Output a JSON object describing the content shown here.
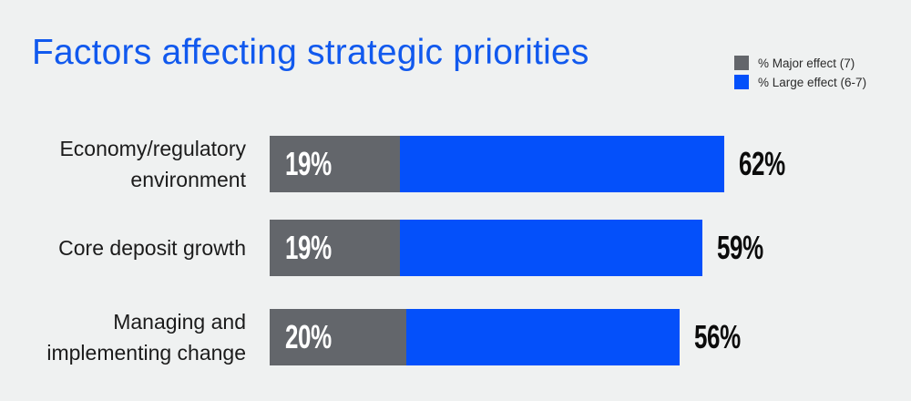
{
  "title": "Factors affecting strategic priorities",
  "colors": {
    "background": "#eff1f1",
    "title_blue": "#1159ee",
    "bar_gray": "#63666b",
    "bar_blue": "#0450fa",
    "label_dark": "#1b1b1b"
  },
  "legend": {
    "items": [
      {
        "label": "% Major effect (7)",
        "color": "#63666b"
      },
      {
        "label": "% Large effect (6-7)",
        "color": "#0450fa"
      }
    ]
  },
  "rows": [
    {
      "label_line1": "Economy/regulatory",
      "label_line2": "environment",
      "major_label": "19%",
      "total_label": "62%"
    },
    {
      "label_line1": "Core deposit growth",
      "label_line2": "",
      "major_label": "19%",
      "total_label": "59%"
    },
    {
      "label_line1": "Managing and",
      "label_line2": "implementing change",
      "major_label": "20%",
      "total_label": "56%"
    }
  ],
  "chart_data": {
    "type": "bar",
    "orientation": "horizontal",
    "stacked": true,
    "title": "Factors affecting strategic priorities",
    "categories": [
      "Economy/regulatory environment",
      "Core deposit growth",
      "Managing and implementing change"
    ],
    "series": [
      {
        "name": "% Major effect (7)",
        "color": "#63666b",
        "values": [
          19,
          19,
          20
        ]
      },
      {
        "name": "% Large effect (6-7)",
        "color": "#0450fa",
        "values": [
          62,
          59,
          56
        ]
      }
    ],
    "value_unit": "%",
    "xlim": [
      0,
      100
    ],
    "grid": false,
    "legend_position": "top-right",
    "bar_length_represents": "large_effect_total"
  }
}
